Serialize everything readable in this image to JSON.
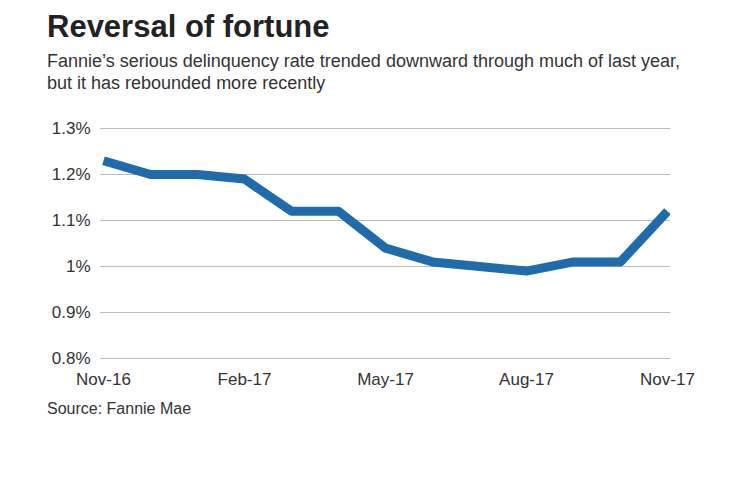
{
  "chart_data": {
    "type": "line",
    "title": "Reversal of fortune",
    "subtitle": "Fannie’s serious delinquency rate trended downward through much of last year, but it has rebounded more recently",
    "source": "Source: Fannie Mae",
    "categories": [
      "Nov-16",
      null,
      null,
      "Feb-17",
      null,
      null,
      "May-17",
      null,
      null,
      "Aug-17",
      null,
      null,
      "Nov-17"
    ],
    "values": [
      1.23,
      1.2,
      1.2,
      1.19,
      1.12,
      1.12,
      1.04,
      1.01,
      1.0,
      0.99,
      1.01,
      1.01,
      1.12
    ],
    "color": "#1f6bab",
    "ylim": [
      0.8,
      1.3
    ],
    "yticks": [
      {
        "value": 0.8,
        "label": "0.8%"
      },
      {
        "value": 0.9,
        "label": "0.9%"
      },
      {
        "value": 1,
        "label": "1%"
      },
      {
        "value": 1.1,
        "label": "1.1%"
      },
      {
        "value": 1.2,
        "label": "1.2%"
      },
      {
        "value": 1.3,
        "label": "1.3%"
      }
    ],
    "grid": true
  }
}
